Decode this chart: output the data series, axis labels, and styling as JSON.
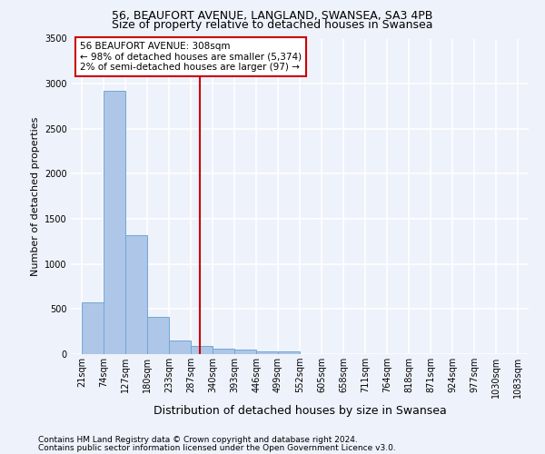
{
  "title_line1": "56, BEAUFORT AVENUE, LANGLAND, SWANSEA, SA3 4PB",
  "title_line2": "Size of property relative to detached houses in Swansea",
  "xlabel": "Distribution of detached houses by size in Swansea",
  "ylabel": "Number of detached properties",
  "footnote1": "Contains HM Land Registry data © Crown copyright and database right 2024.",
  "footnote2": "Contains public sector information licensed under the Open Government Licence v3.0.",
  "annotation_line1": "56 BEAUFORT AVENUE: 308sqm",
  "annotation_line2": "← 98% of detached houses are smaller (5,374)",
  "annotation_line3": "2% of semi-detached houses are larger (97) →",
  "vline_x": 308,
  "bar_edges": [
    21,
    74,
    127,
    180,
    233,
    287,
    340,
    393,
    446,
    499,
    552,
    605,
    658,
    711,
    764,
    818,
    871,
    924,
    977,
    1030,
    1083
  ],
  "bar_values": [
    570,
    2920,
    1320,
    410,
    155,
    90,
    65,
    50,
    35,
    35,
    0,
    0,
    0,
    0,
    0,
    0,
    0,
    0,
    0,
    0
  ],
  "bar_color": "#aec6e8",
  "bar_edgecolor": "#6fa8d4",
  "vline_color": "#cc0000",
  "background_color": "#eef2fb",
  "grid_color": "#ffffff",
  "ylim": [
    0,
    3500
  ],
  "yticks": [
    0,
    500,
    1000,
    1500,
    2000,
    2500,
    3000,
    3500
  ],
  "annotation_box_edgecolor": "#cc0000",
  "annotation_box_facecolor": "#ffffff",
  "title1_fontsize": 9,
  "title2_fontsize": 9,
  "ylabel_fontsize": 8,
  "xlabel_fontsize": 9,
  "footnote_fontsize": 6.5,
  "tick_fontsize": 7,
  "annotation_fontsize": 7.5
}
